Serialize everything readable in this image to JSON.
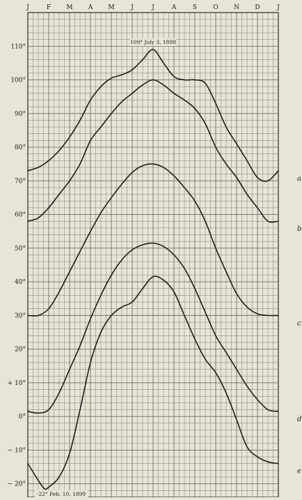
{
  "chart_data": {
    "type": "line",
    "title": "",
    "xlabel": "",
    "ylabel": "",
    "x_months": [
      "J",
      "F",
      "M",
      "A",
      "M",
      "J",
      "J",
      "A",
      "S",
      "O",
      "N",
      "D",
      "J"
    ],
    "x_range": [
      0,
      12
    ],
    "ylim": [
      -24,
      120
    ],
    "y_ticks": [
      {
        "value": 110,
        "label": "110°"
      },
      {
        "value": 100,
        "label": "100°"
      },
      {
        "value": 90,
        "label": "90°"
      },
      {
        "value": 80,
        "label": "80°"
      },
      {
        "value": 70,
        "label": "70°"
      },
      {
        "value": 60,
        "label": "60°"
      },
      {
        "value": 50,
        "label": "50°"
      },
      {
        "value": 40,
        "label": "40°"
      },
      {
        "value": 30,
        "label": "30°"
      },
      {
        "value": 20,
        "label": "20°"
      },
      {
        "value": 10,
        "label": "+ 10°"
      },
      {
        "value": 0,
        "label": "0°"
      },
      {
        "value": -10,
        "label": "− 10°"
      },
      {
        "value": -20,
        "label": "− 20°"
      }
    ],
    "grid": true,
    "series": [
      {
        "name": "a",
        "x": [
          0,
          0.5,
          1,
          1.5,
          2,
          2.5,
          3,
          3.5,
          4,
          4.5,
          5,
          5.5,
          6,
          6.5,
          7,
          7.5,
          8,
          8.5,
          9,
          9.5,
          10,
          10.5,
          11,
          11.5,
          12
        ],
        "y": [
          73,
          74,
          76,
          79,
          83,
          88,
          94,
          98,
          100.5,
          101.5,
          103,
          106,
          109,
          105,
          101,
          100,
          100,
          99,
          93,
          86,
          81,
          76,
          71,
          70,
          73
        ]
      },
      {
        "name": "b",
        "x": [
          0,
          0.5,
          1,
          1.5,
          2,
          2.5,
          3,
          3.5,
          4,
          4.5,
          5,
          5.5,
          6,
          6.5,
          7,
          7.5,
          8,
          8.5,
          9,
          9.5,
          10,
          10.5,
          11,
          11.5,
          12
        ],
        "y": [
          58,
          59,
          62,
          66,
          70,
          75,
          82,
          86,
          90,
          93.5,
          96,
          98.5,
          100,
          98.5,
          96,
          94,
          91.5,
          87,
          80,
          75,
          71,
          66,
          62,
          58,
          58
        ]
      },
      {
        "name": "c",
        "x": [
          0,
          0.5,
          1,
          1.5,
          2,
          2.5,
          3,
          3.5,
          4,
          4.5,
          5,
          5.5,
          6,
          6.5,
          7,
          7.5,
          8,
          8.5,
          9,
          9.5,
          10,
          10.5,
          11,
          11.5,
          12
        ],
        "y": [
          30,
          30,
          32,
          37,
          43,
          49,
          55,
          60.5,
          65,
          69,
          72.5,
          74.5,
          75,
          74,
          71.5,
          68,
          64,
          58,
          50,
          43,
          36.5,
          32.5,
          30.5,
          30,
          30
        ]
      },
      {
        "name": "d",
        "x": [
          0,
          0.5,
          1,
          1.5,
          2,
          2.5,
          3,
          3.5,
          4,
          4.5,
          5,
          5.5,
          6,
          6.5,
          7,
          7.5,
          8,
          8.5,
          9,
          9.5,
          10,
          10.5,
          11,
          11.5,
          12
        ],
        "y": [
          1.5,
          1,
          2,
          7,
          14,
          21,
          29,
          36,
          42,
          46.5,
          49.5,
          51,
          51.5,
          50.5,
          48,
          44,
          38,
          31,
          24,
          19,
          14,
          9,
          5,
          2,
          1.5
        ]
      },
      {
        "name": "e",
        "x": [
          0,
          0.5,
          0.8,
          1,
          1.5,
          2,
          2.5,
          3,
          3.5,
          4,
          4.5,
          5,
          5.5,
          6,
          6.5,
          7,
          7.5,
          8,
          8.5,
          9,
          9.5,
          10,
          10.5,
          11,
          11.5,
          12
        ],
        "y": [
          -14,
          -19,
          -21.5,
          -21,
          -18,
          -11,
          2,
          16,
          25,
          30,
          32.5,
          34,
          38,
          41.5,
          40.5,
          37,
          30,
          23,
          17,
          13,
          7,
          -1,
          -9,
          -12,
          -13.5,
          -14
        ]
      }
    ],
    "annotations": [
      {
        "text": "109° July 3, 1898",
        "x": 6,
        "y": 109
      },
      {
        "text": "-22° Feb. 10, 1899",
        "x": 0.8,
        "y": -21.5
      }
    ]
  }
}
